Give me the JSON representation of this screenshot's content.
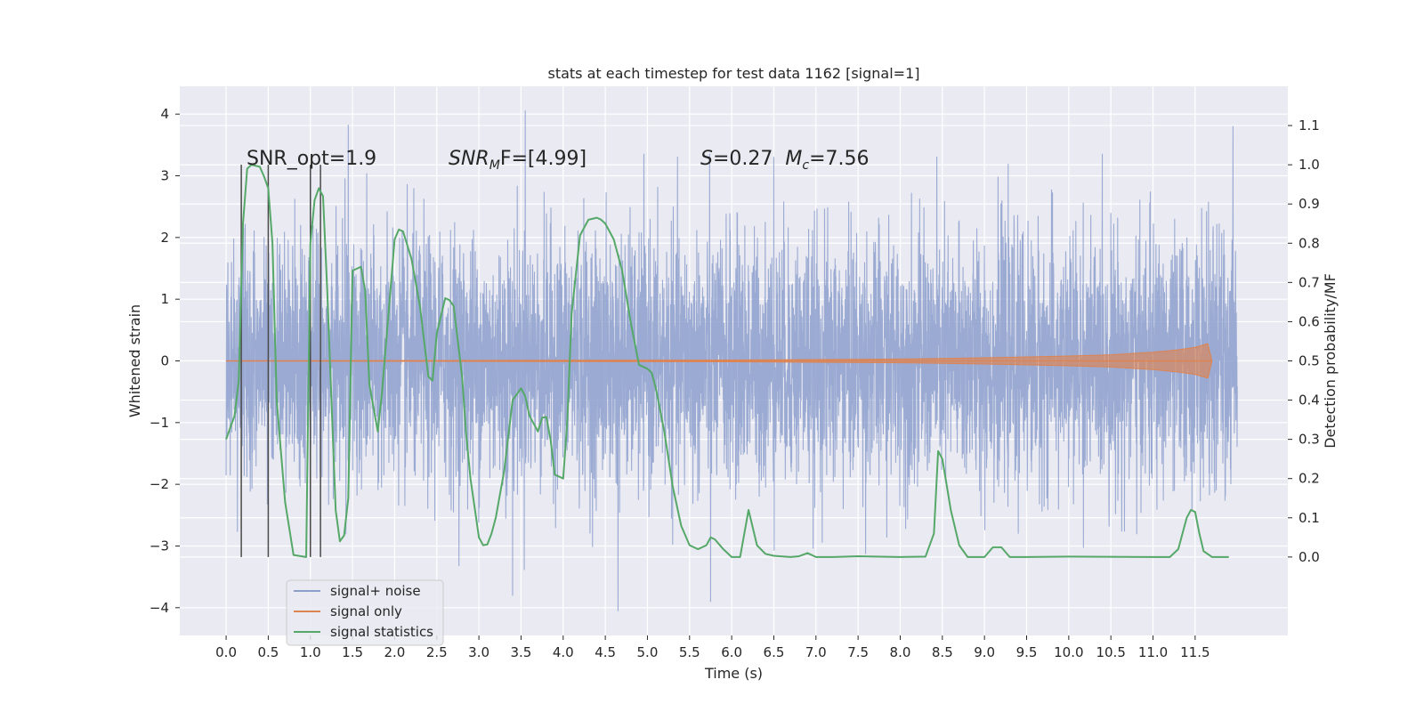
{
  "chart_data": {
    "type": "line",
    "title": "stats at each timestep for test data 1162 [signal=1]",
    "xlabel": "Time (s)",
    "ylabel_left": "Whitened strain",
    "ylabel_right": "Detection probability/MF",
    "xlim": [
      -0.55,
      12.6
    ],
    "ylim_left": [
      -4.45,
      4.45
    ],
    "ylim_right": [
      -0.2,
      1.2
    ],
    "x_ticks": [
      "0.0",
      "0.5",
      "1.0",
      "1.5",
      "2.0",
      "2.5",
      "3.0",
      "3.5",
      "4.0",
      "4.5",
      "5.0",
      "5.5",
      "6.0",
      "6.5",
      "7.0",
      "7.5",
      "8.0",
      "8.5",
      "9.0",
      "9.5",
      "10.0",
      "10.5",
      "11.0",
      "11.5"
    ],
    "y_ticks_left": [
      "4",
      "3",
      "2",
      "1",
      "0",
      "−1",
      "−2",
      "−3",
      "−4"
    ],
    "y_ticks_right": [
      "1.1",
      "1.0",
      "0.9",
      "0.8",
      "0.7",
      "0.6",
      "0.5",
      "0.4",
      "0.3",
      "0.2",
      "0.1",
      "0.0"
    ],
    "grid": true,
    "legend_position": "bottom-left",
    "annotations": {
      "snr_opt": "SNR_opt=1.9",
      "snr_mf_main": "SNR",
      "snr_mf_sub": "M",
      "snr_mf_rest": "F=[4.99]",
      "s_sym": "S",
      "s_val": "=0.27",
      "mc_sym": "M",
      "mc_sub": "c",
      "mc_val": "=7.56"
    },
    "series": [
      {
        "name": "signal+ noise",
        "color": "#8c9fcc",
        "axis": "left",
        "x_range": [
          0.0,
          12.0
        ],
        "envelope_typical": [
          -2.0,
          2.0
        ],
        "peaks": [
          [
            1.45,
            3.82
          ],
          [
            3.55,
            4.05
          ],
          [
            6.5,
            3.3
          ],
          [
            11.95,
            3.8
          ],
          [
            4.65,
            -4.05
          ],
          [
            5.75,
            -3.9
          ],
          [
            3.4,
            -3.8
          ]
        ]
      },
      {
        "name": "signal only",
        "color": "#dd8452",
        "axis": "left",
        "x": [
          0.0,
          2.0,
          4.0,
          6.0,
          8.0,
          9.0,
          10.0,
          10.5,
          11.0,
          11.3,
          11.5,
          11.65,
          11.7
        ],
        "amplitude": [
          0.0,
          0.005,
          0.01,
          0.015,
          0.03,
          0.05,
          0.08,
          0.1,
          0.14,
          0.18,
          0.22,
          0.28,
          0.0
        ]
      },
      {
        "name": "signal statistics",
        "color": "#55a868",
        "axis": "right",
        "x": [
          0.0,
          0.1,
          0.15,
          0.2,
          0.25,
          0.3,
          0.4,
          0.45,
          0.5,
          0.55,
          0.6,
          0.7,
          0.8,
          0.95,
          1.0,
          1.05,
          1.1,
          1.15,
          1.2,
          1.3,
          1.35,
          1.4,
          1.45,
          1.5,
          1.6,
          1.65,
          1.7,
          1.8,
          1.85,
          1.9,
          2.0,
          2.05,
          2.1,
          2.2,
          2.3,
          2.4,
          2.45,
          2.5,
          2.6,
          2.65,
          2.7,
          2.8,
          2.85,
          2.9,
          3.0,
          3.05,
          3.1,
          3.15,
          3.2,
          3.3,
          3.4,
          3.5,
          3.55,
          3.6,
          3.7,
          3.75,
          3.8,
          3.85,
          3.9,
          4.0,
          4.05,
          4.1,
          4.2,
          4.3,
          4.4,
          4.45,
          4.5,
          4.6,
          4.7,
          4.8,
          4.9,
          5.0,
          5.05,
          5.1,
          5.2,
          5.3,
          5.4,
          5.5,
          5.6,
          5.7,
          5.75,
          5.8,
          5.9,
          6.0,
          6.1,
          6.15,
          6.2,
          6.3,
          6.4,
          6.5,
          6.7,
          6.8,
          6.9,
          7.0,
          7.2,
          7.5,
          8.0,
          8.3,
          8.4,
          8.45,
          8.5,
          8.6,
          8.7,
          8.8,
          9.0,
          9.1,
          9.2,
          9.3,
          9.5,
          10.0,
          11.0,
          11.2,
          11.3,
          11.4,
          11.45,
          11.5,
          11.55,
          11.6,
          11.7,
          11.8,
          11.9
        ],
        "values": [
          0.3,
          0.36,
          0.45,
          0.85,
          0.99,
          1.0,
          0.995,
          0.97,
          0.94,
          0.8,
          0.4,
          0.14,
          0.005,
          0.0,
          0.8,
          0.91,
          0.94,
          0.92,
          0.68,
          0.12,
          0.04,
          0.055,
          0.15,
          0.73,
          0.74,
          0.68,
          0.44,
          0.32,
          0.42,
          0.55,
          0.81,
          0.835,
          0.83,
          0.76,
          0.64,
          0.46,
          0.45,
          0.57,
          0.66,
          0.655,
          0.64,
          0.46,
          0.31,
          0.2,
          0.05,
          0.03,
          0.032,
          0.06,
          0.1,
          0.22,
          0.4,
          0.43,
          0.41,
          0.36,
          0.32,
          0.355,
          0.357,
          0.3,
          0.21,
          0.2,
          0.35,
          0.62,
          0.82,
          0.86,
          0.865,
          0.86,
          0.85,
          0.81,
          0.73,
          0.6,
          0.49,
          0.48,
          0.47,
          0.43,
          0.32,
          0.18,
          0.08,
          0.03,
          0.02,
          0.03,
          0.05,
          0.045,
          0.02,
          0.0,
          0.0,
          0.06,
          0.12,
          0.03,
          0.008,
          0.003,
          0.0,
          0.002,
          0.01,
          0.0,
          0.0,
          0.002,
          0.0,
          0.001,
          0.06,
          0.27,
          0.25,
          0.12,
          0.03,
          0.0,
          0.0,
          0.025,
          0.025,
          0.0,
          0.0,
          0.001,
          0.0,
          0.0,
          0.02,
          0.1,
          0.12,
          0.115,
          0.06,
          0.015,
          0.0,
          0.0,
          0.0
        ]
      }
    ],
    "vertical_markers": {
      "color": "#4a4a4a",
      "x": [
        0.18,
        0.5,
        1.0,
        1.12
      ],
      "top": 1.0,
      "bottom": 0.0
    }
  }
}
